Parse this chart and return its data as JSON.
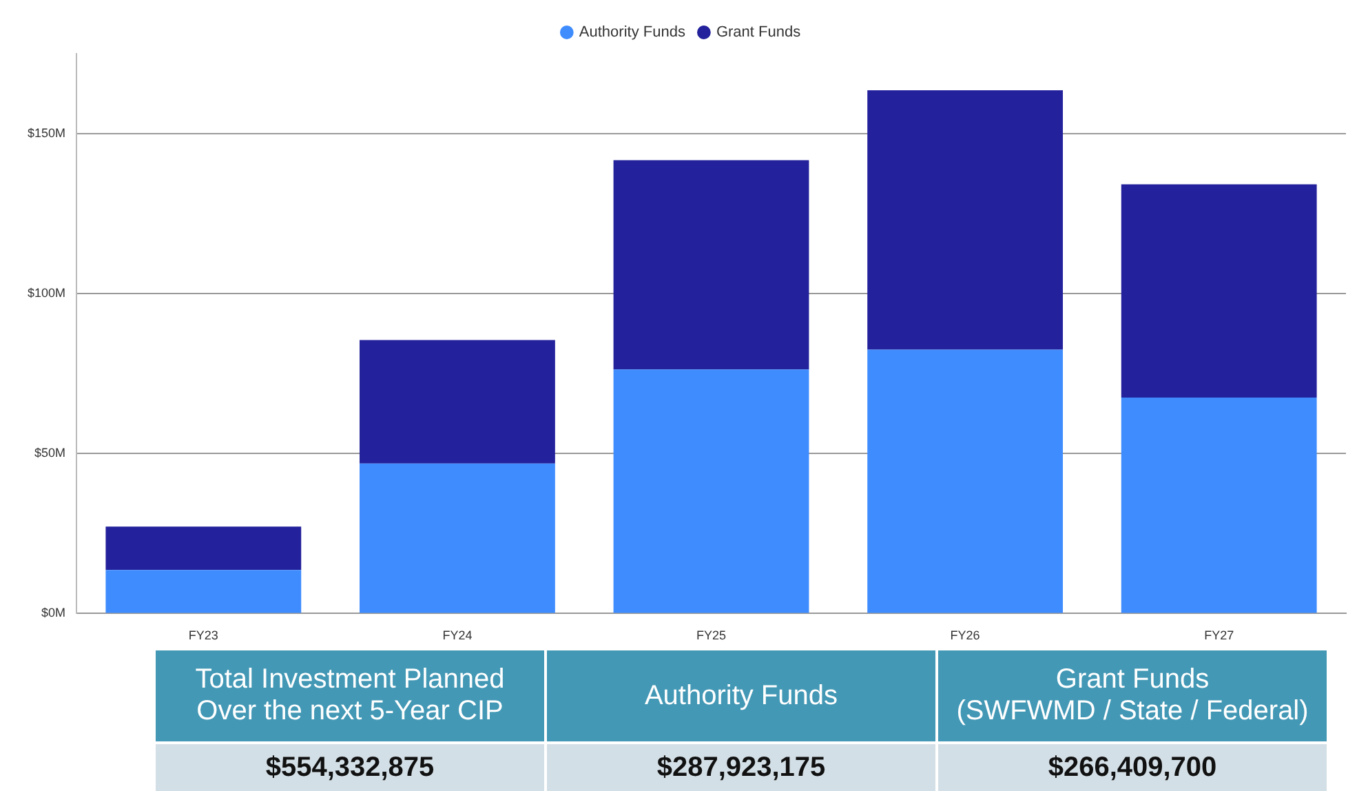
{
  "chart_data": {
    "type": "bar",
    "stacked": true,
    "categories": [
      "FY23",
      "FY24",
      "FY25",
      "FY26",
      "FY27"
    ],
    "series": [
      {
        "name": "Authority Funds",
        "color": "#3f8cff",
        "values": [
          13.6,
          46.9,
          76.3,
          82.5,
          67.5
        ]
      },
      {
        "name": "Grant Funds",
        "color": "#23219b",
        "values": [
          13.6,
          38.6,
          65.4,
          81.1,
          66.7
        ]
      }
    ],
    "yticks": [
      {
        "value": 0,
        "label": "$0M"
      },
      {
        "value": 50,
        "label": "$50M"
      },
      {
        "value": 100,
        "label": "$100M"
      },
      {
        "value": 150,
        "label": "$150M"
      }
    ],
    "ylim": [
      0,
      175
    ],
    "grid": "y",
    "legend": "top",
    "annotations": [
      "Total Investment Planned\nOver the next 5-Year CIP",
      "Authority Funds",
      "Grant Funds\n(SWFWMD / State / Federal)",
      "$554,332,875",
      "$287,923,175",
      "$266,409,700"
    ]
  }
}
